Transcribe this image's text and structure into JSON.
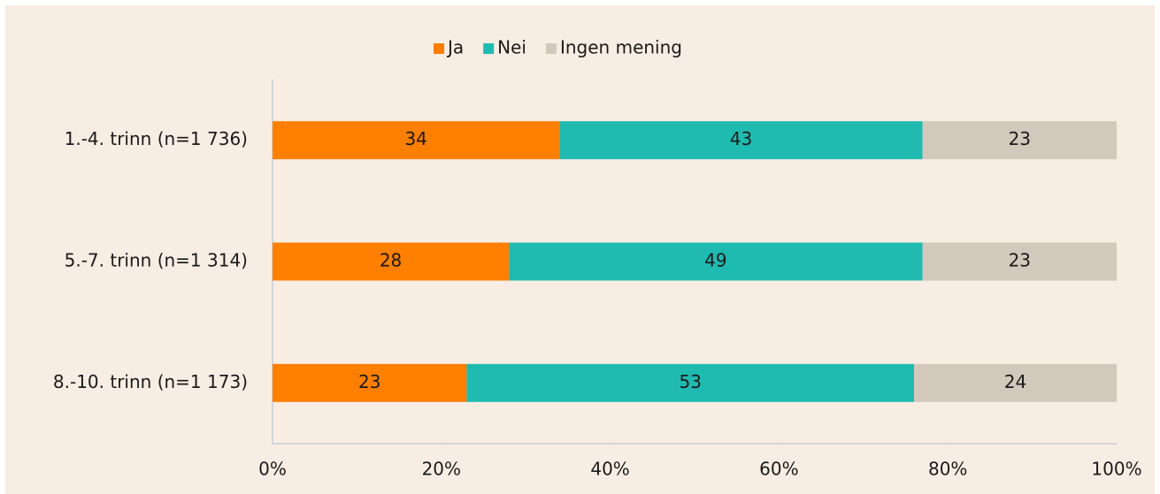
{
  "chart_data": {
    "type": "stacked-bar-horizontal",
    "categories": [
      "1.-4. trinn (n=1 736)",
      "5.-7. trinn (n=1 314)",
      "8.-10. trinn (n=1 173)"
    ],
    "series": [
      {
        "name": "Ja",
        "color": "#ff7f00",
        "values": [
          34,
          28,
          23
        ]
      },
      {
        "name": "Nei",
        "color": "#20bbb0",
        "values": [
          43,
          49,
          53
        ]
      },
      {
        "name": "Ingen mening",
        "color": "#d3c8bc",
        "values": [
          23,
          23,
          24
        ]
      }
    ],
    "xlim": [
      0,
      100
    ],
    "xticks": [
      {
        "value": 0,
        "label": "0%"
      },
      {
        "value": 20,
        "label": "20%"
      },
      {
        "value": 40,
        "label": "40%"
      },
      {
        "value": 60,
        "label": "60%"
      },
      {
        "value": 80,
        "label": "80%"
      },
      {
        "value": 100,
        "label": "100%"
      }
    ],
    "legend": "top"
  }
}
